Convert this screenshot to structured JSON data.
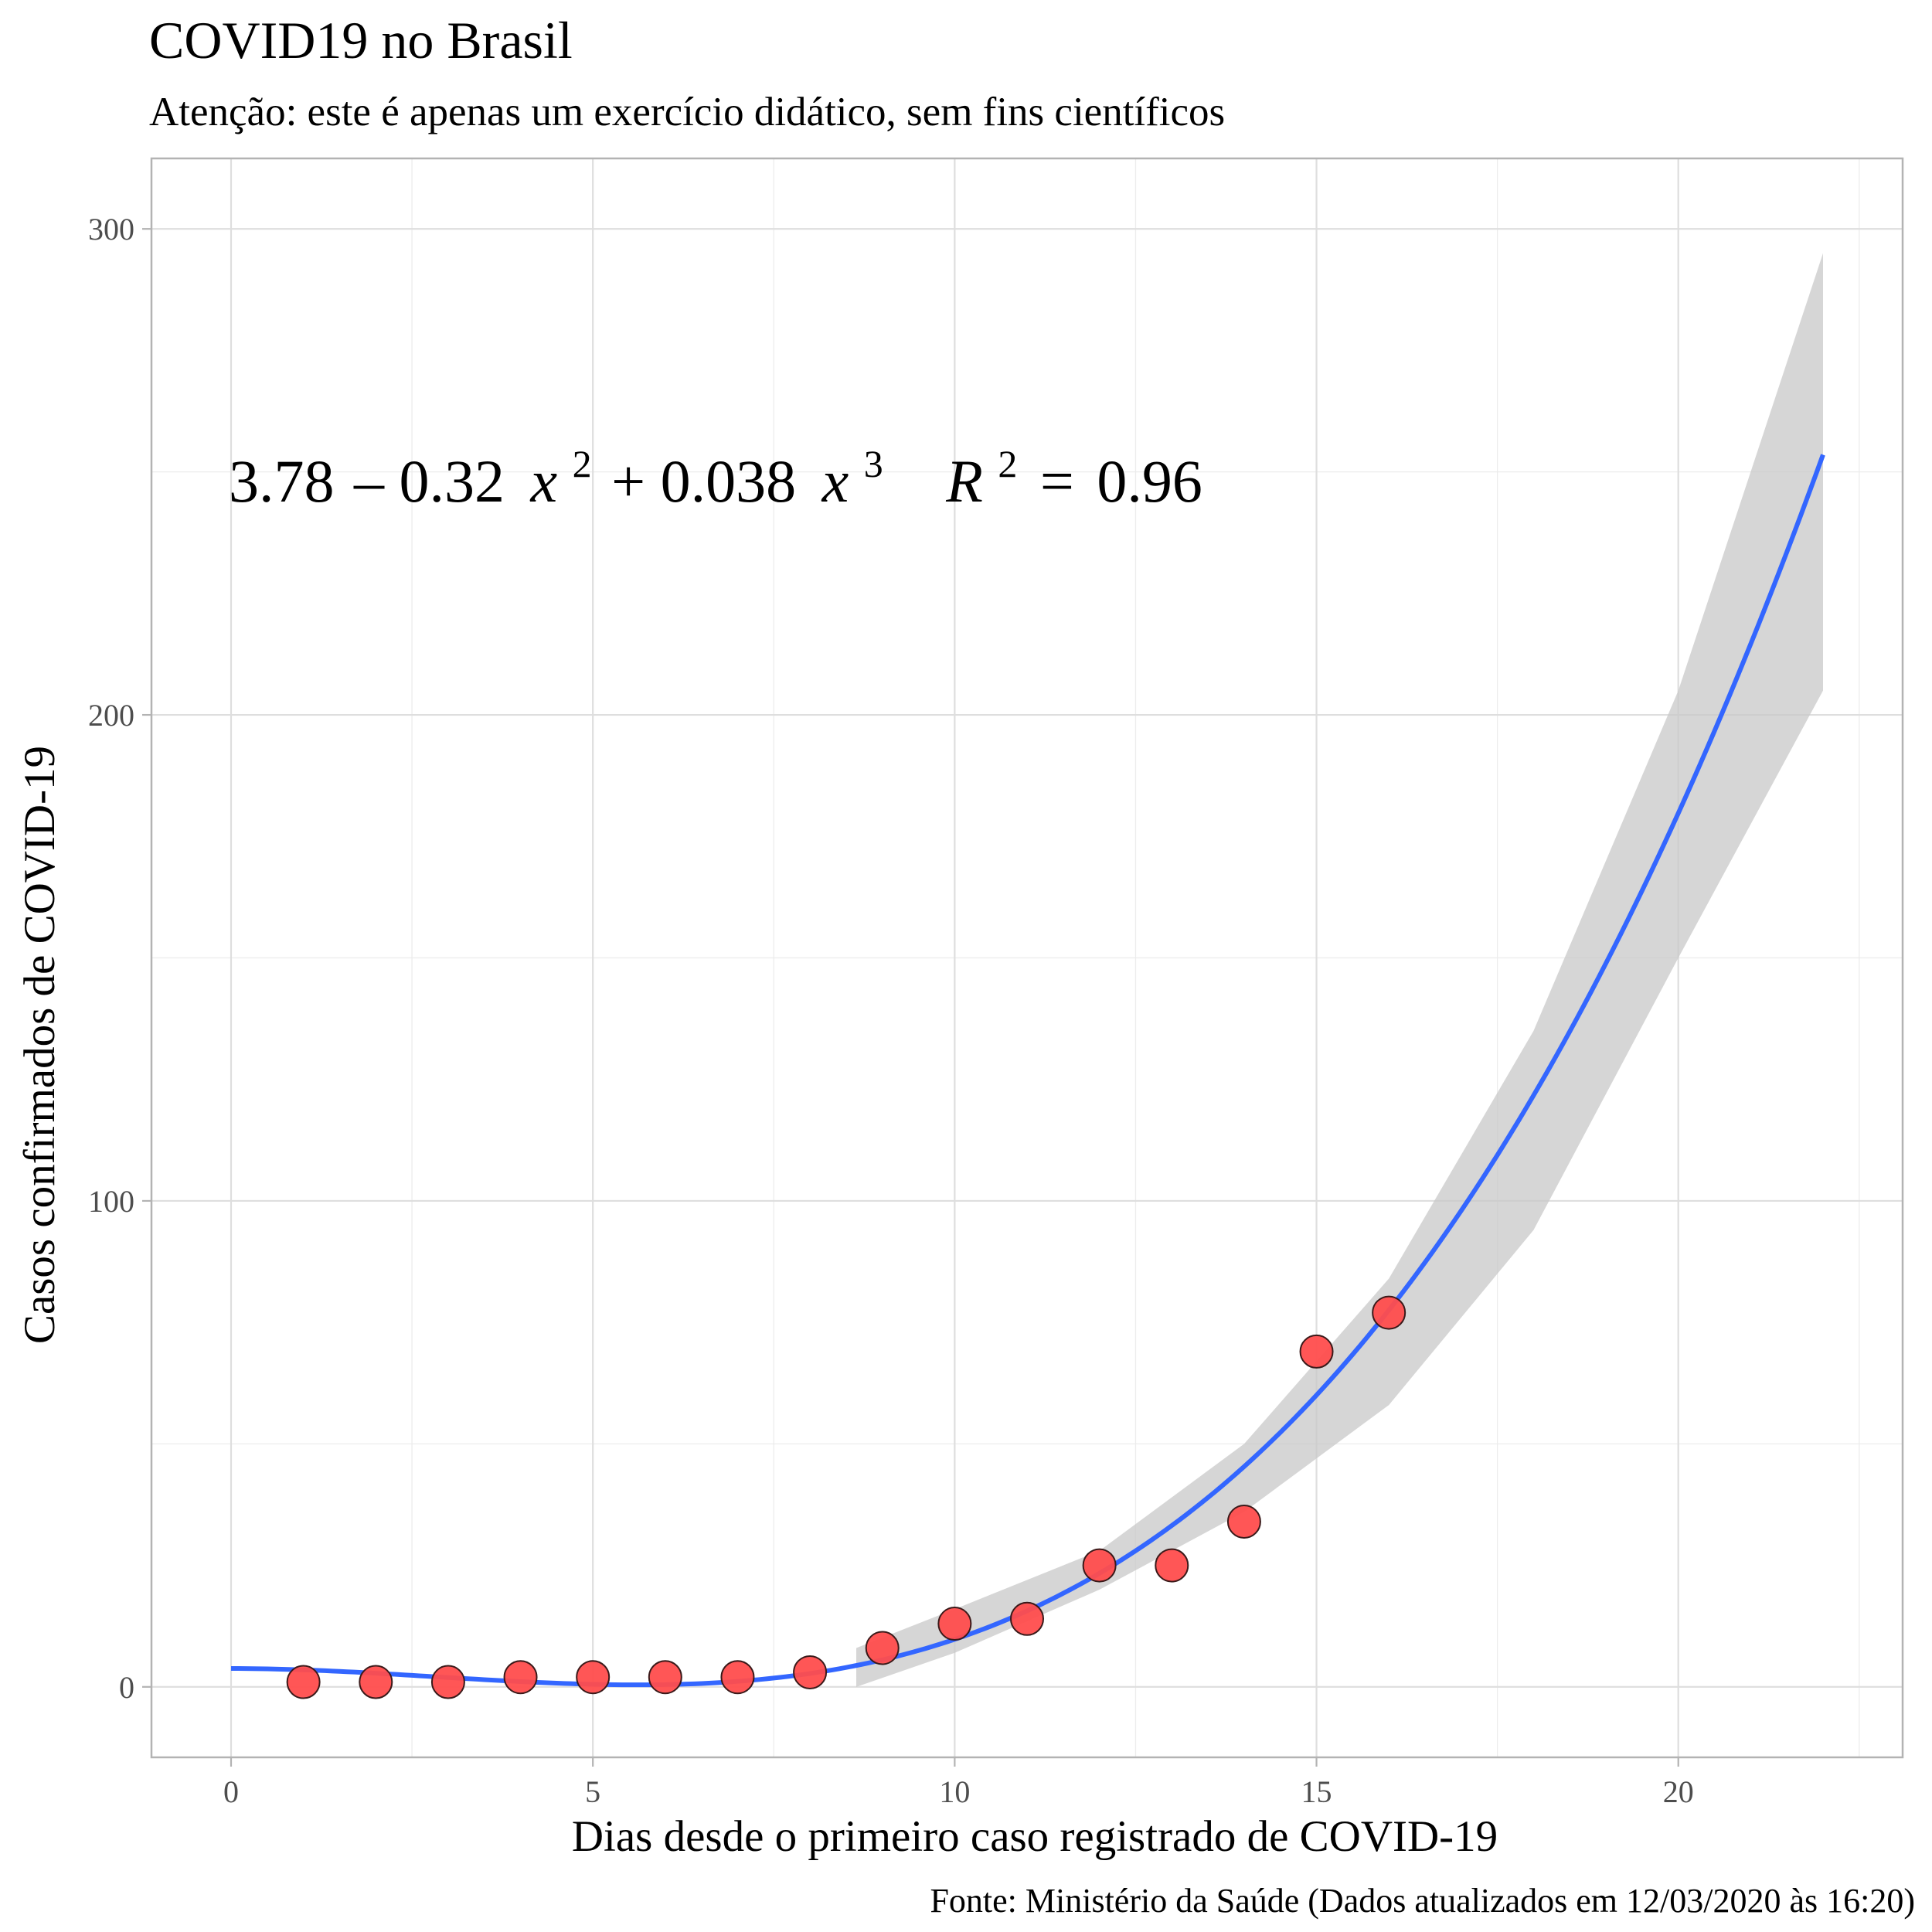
{
  "chart_data": {
    "type": "scatter",
    "title": "COVID19 no Brasil",
    "subtitle": "Atenção: este é apenas um exercício didático, sem fins científicos",
    "xlabel": "Dias desde o primeiro caso registrado de COVID-19",
    "ylabel": "Casos confirmados de COVID-19",
    "caption": "Fonte: Ministério da Saúde (Dados atualizados em 12/03/2020 às 16:20)",
    "xlim": [
      -1.1,
      23.1
    ],
    "ylim": [
      -14.5,
      314.5
    ],
    "x_ticks": [
      0,
      5,
      10,
      15,
      20
    ],
    "y_ticks": [
      0,
      100,
      200,
      300
    ],
    "grid": true,
    "points": {
      "x": [
        1,
        2,
        3,
        4,
        5,
        6,
        7,
        8,
        9,
        10,
        11,
        12,
        13,
        14,
        15,
        16
      ],
      "y": [
        1,
        1,
        1,
        2,
        2,
        2,
        2,
        3,
        8,
        13,
        14,
        25,
        25,
        34,
        69,
        77
      ],
      "color": "#ff4d4d"
    },
    "fit": {
      "formula": "y ~ x^2 + x^3",
      "coefficients": {
        "intercept": 3.78,
        "x2": -0.32,
        "x3": 0.038
      },
      "x_range": [
        0,
        22
      ],
      "color": "#3366ff",
      "ribbon_color": "#c8c8c8",
      "ribbon": {
        "x": [
          8.64,
          10,
          12,
          14,
          16,
          18,
          20,
          22
        ],
        "lower": [
          0,
          7,
          20,
          36,
          58,
          94,
          150,
          205
        ],
        "upper": [
          8,
          16,
          28,
          50,
          84,
          135,
          205,
          295
        ]
      }
    },
    "annotation": {
      "equation": {
        "c0": "3.78",
        "op1": "–",
        "c2": "0.32",
        "x": "x",
        "p2": "2",
        "op2": "+",
        "c3": "0.038",
        "p3": "3",
        "r": "R",
        "rp": "2",
        "eq": "=",
        "rval": "0.96"
      }
    }
  }
}
